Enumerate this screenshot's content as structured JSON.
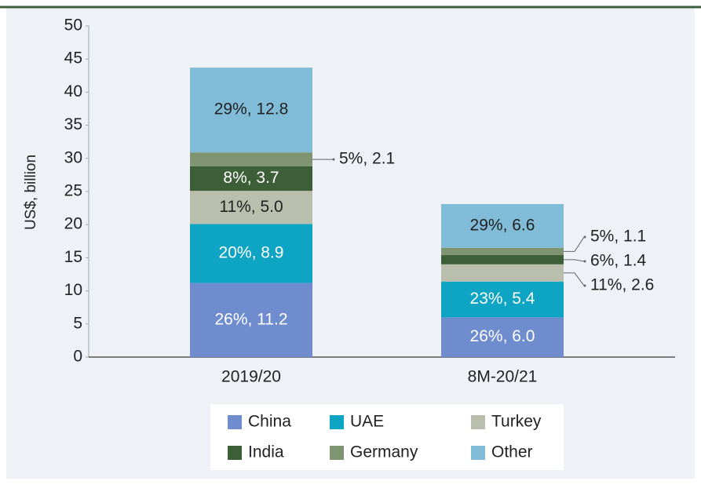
{
  "chart_data": {
    "type": "stacked_bar",
    "y_label": "US$, billion",
    "categories": [
      "2019/20",
      "8M-20/21"
    ],
    "series": [
      {
        "name": "China",
        "color": "#6f8ccf",
        "values": [
          11.2,
          6.0
        ],
        "value_labels": [
          "26%, 11.2",
          "26%, 6.0"
        ]
      },
      {
        "name": "UAE",
        "color": "#0ea4c3",
        "values": [
          8.9,
          5.4
        ],
        "value_labels": [
          "20%, 8.9",
          "23%, 5.4"
        ]
      },
      {
        "name": "Turkey",
        "color": "#b9bead",
        "values": [
          5.0,
          2.6
        ],
        "value_labels": [
          "11%, 5.0",
          "11%, 2.6"
        ]
      },
      {
        "name": "India",
        "color": "#3d5f37",
        "values": [
          3.7,
          1.4
        ],
        "value_labels": [
          "8%, 3.7",
          "6%, 1.4"
        ]
      },
      {
        "name": "Germany",
        "color": "#7f9572",
        "values": [
          2.1,
          1.1
        ],
        "value_labels": [
          "5%, 2.1",
          "5%, 1.1"
        ]
      },
      {
        "name": "Other",
        "color": "#80bcd8",
        "values": [
          12.8,
          6.6
        ],
        "value_labels": [
          "29%, 12.8",
          "29%, 6.6"
        ]
      }
    ],
    "ylim": [
      0,
      50
    ],
    "yticks": [
      0,
      5,
      10,
      15,
      20,
      25,
      30,
      35,
      40,
      45,
      50
    ],
    "grid": false
  }
}
